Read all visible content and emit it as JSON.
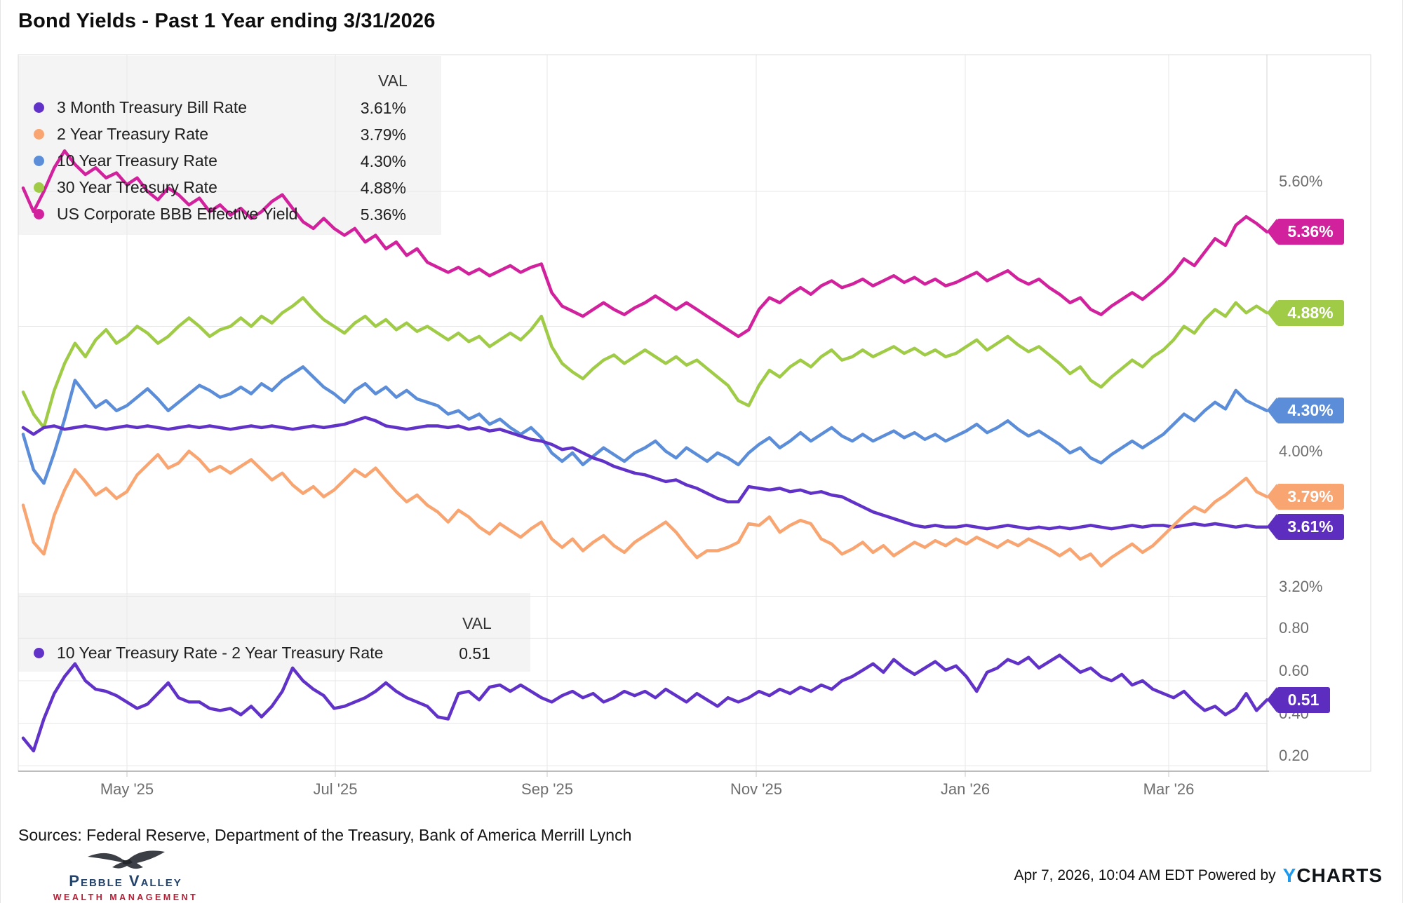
{
  "title": "Bond Yields - Past 1 Year ending 3/31/2026",
  "top_legend": {
    "val_header": "VAL",
    "items": [
      {
        "label": "3 Month Treasury Bill Rate",
        "value": "3.61%",
        "color": "#6132c8"
      },
      {
        "label": "2 Year Treasury Rate",
        "value": "3.79%",
        "color": "#f8a571"
      },
      {
        "label": "10 Year Treasury Rate",
        "value": "4.30%",
        "color": "#5b8dd9"
      },
      {
        "label": "30 Year Treasury Rate",
        "value": "4.88%",
        "color": "#9fcb47"
      },
      {
        "label": "US Corporate BBB Effective Yield",
        "value": "5.36%",
        "color": "#d2219c"
      }
    ]
  },
  "bottom_legend": {
    "val_header": "VAL",
    "items": [
      {
        "label": "10 Year Treasury Rate - 2 Year Treasury Rate",
        "value": "0.51",
        "color": "#6132c8"
      }
    ]
  },
  "pills": [
    {
      "text": "5.36%",
      "value": 5.36,
      "panel": 0,
      "color": "#d2219c"
    },
    {
      "text": "4.88%",
      "value": 4.88,
      "panel": 0,
      "color": "#9fcb47"
    },
    {
      "text": "4.30%",
      "value": 4.3,
      "panel": 0,
      "color": "#5b8dd9"
    },
    {
      "text": "3.79%",
      "value": 3.79,
      "panel": 0,
      "color": "#f8a571"
    },
    {
      "text": "3.61%",
      "value": 3.61,
      "panel": 0,
      "color": "#5c2dbf"
    },
    {
      "text": "0.51",
      "value": 0.51,
      "panel": 1,
      "color": "#5c2dbf"
    }
  ],
  "chart_data": [
    {
      "type": "line",
      "title": "Bond Yields - Past 1 Year ending 3/31/2026",
      "x_range": [
        "Apr 2025",
        "Mar 31 2026"
      ],
      "x_tick_labels": [
        "May '25",
        "Jul '25",
        "Sep '25",
        "Nov '25",
        "Jan '26",
        "Mar '26"
      ],
      "ylim": [
        3.2,
        6.0
      ],
      "grid_values": [
        5.6,
        4.8,
        4.0,
        3.2
      ],
      "yticks": [
        {
          "label": "5.60%",
          "value": 5.6
        },
        {
          "label": "4.00%",
          "value": 4.0
        },
        {
          "label": "3.20%",
          "value": 3.2
        }
      ],
      "legend_position": "top-left",
      "series": [
        {
          "name": "US Corporate BBB Effective Yield",
          "color": "#d2219c",
          "end_value": 5.36,
          "values": [
            5.62,
            5.48,
            5.6,
            5.74,
            5.84,
            5.76,
            5.7,
            5.74,
            5.68,
            5.71,
            5.64,
            5.68,
            5.6,
            5.55,
            5.62,
            5.58,
            5.52,
            5.56,
            5.48,
            5.52,
            5.46,
            5.5,
            5.44,
            5.48,
            5.54,
            5.58,
            5.5,
            5.42,
            5.38,
            5.44,
            5.38,
            5.34,
            5.38,
            5.3,
            5.34,
            5.26,
            5.3,
            5.22,
            5.26,
            5.18,
            5.15,
            5.12,
            5.15,
            5.11,
            5.14,
            5.1,
            5.13,
            5.16,
            5.12,
            5.15,
            5.17,
            5.0,
            4.92,
            4.89,
            4.86,
            4.9,
            4.94,
            4.9,
            4.87,
            4.91,
            4.94,
            4.98,
            4.94,
            4.9,
            4.94,
            4.9,
            4.86,
            4.82,
            4.78,
            4.74,
            4.78,
            4.9,
            4.97,
            4.94,
            4.99,
            5.03,
            4.99,
            5.04,
            5.07,
            5.03,
            5.05,
            5.08,
            5.04,
            5.07,
            5.1,
            5.06,
            5.09,
            5.05,
            5.08,
            5.04,
            5.06,
            5.09,
            5.12,
            5.07,
            5.1,
            5.13,
            5.08,
            5.05,
            5.08,
            5.03,
            4.99,
            4.94,
            4.97,
            4.9,
            4.87,
            4.92,
            4.96,
            5.0,
            4.96,
            5.01,
            5.06,
            5.12,
            5.2,
            5.16,
            5.24,
            5.32,
            5.28,
            5.4,
            5.45,
            5.41,
            5.36
          ]
        },
        {
          "name": "30 Year Treasury Rate",
          "color": "#9fcb47",
          "end_value": 4.88,
          "values": [
            4.41,
            4.28,
            4.2,
            4.42,
            4.58,
            4.7,
            4.62,
            4.72,
            4.78,
            4.7,
            4.74,
            4.8,
            4.76,
            4.7,
            4.74,
            4.8,
            4.85,
            4.8,
            4.74,
            4.78,
            4.8,
            4.85,
            4.8,
            4.86,
            4.82,
            4.88,
            4.92,
            4.97,
            4.9,
            4.84,
            4.8,
            4.76,
            4.82,
            4.86,
            4.8,
            4.84,
            4.78,
            4.82,
            4.77,
            4.8,
            4.76,
            4.72,
            4.76,
            4.71,
            4.74,
            4.68,
            4.72,
            4.76,
            4.72,
            4.78,
            4.86,
            4.68,
            4.58,
            4.53,
            4.49,
            4.55,
            4.6,
            4.63,
            4.58,
            4.62,
            4.66,
            4.62,
            4.58,
            4.62,
            4.57,
            4.6,
            4.55,
            4.5,
            4.45,
            4.36,
            4.33,
            4.45,
            4.54,
            4.5,
            4.56,
            4.6,
            4.56,
            4.62,
            4.66,
            4.6,
            4.62,
            4.66,
            4.62,
            4.65,
            4.68,
            4.64,
            4.67,
            4.63,
            4.66,
            4.62,
            4.64,
            4.68,
            4.72,
            4.66,
            4.7,
            4.74,
            4.69,
            4.65,
            4.68,
            4.63,
            4.58,
            4.52,
            4.56,
            4.48,
            4.44,
            4.5,
            4.55,
            4.6,
            4.56,
            4.62,
            4.66,
            4.72,
            4.8,
            4.76,
            4.84,
            4.9,
            4.86,
            4.94,
            4.88,
            4.92,
            4.88
          ]
        },
        {
          "name": "10 Year Treasury Rate",
          "color": "#5b8dd9",
          "end_value": 4.3,
          "values": [
            4.16,
            3.95,
            3.87,
            4.05,
            4.25,
            4.48,
            4.4,
            4.32,
            4.36,
            4.3,
            4.33,
            4.38,
            4.43,
            4.37,
            4.3,
            4.35,
            4.4,
            4.45,
            4.42,
            4.38,
            4.4,
            4.44,
            4.4,
            4.46,
            4.42,
            4.48,
            4.52,
            4.56,
            4.5,
            4.44,
            4.4,
            4.35,
            4.42,
            4.46,
            4.4,
            4.44,
            4.38,
            4.42,
            4.37,
            4.35,
            4.33,
            4.28,
            4.3,
            4.25,
            4.28,
            4.22,
            4.25,
            4.2,
            4.16,
            4.2,
            4.14,
            4.05,
            4.0,
            4.05,
            3.98,
            4.03,
            4.08,
            4.04,
            4.0,
            4.05,
            4.08,
            4.12,
            4.06,
            4.02,
            4.08,
            4.04,
            4.0,
            4.05,
            4.02,
            3.98,
            4.05,
            4.1,
            4.14,
            4.08,
            4.12,
            4.17,
            4.12,
            4.16,
            4.2,
            4.15,
            4.12,
            4.16,
            4.12,
            4.15,
            4.18,
            4.14,
            4.17,
            4.13,
            4.16,
            4.12,
            4.15,
            4.18,
            4.22,
            4.17,
            4.2,
            4.24,
            4.19,
            4.15,
            4.18,
            4.14,
            4.1,
            4.05,
            4.08,
            4.02,
            3.99,
            4.04,
            4.08,
            4.12,
            4.08,
            4.12,
            4.16,
            4.22,
            4.28,
            4.24,
            4.3,
            4.35,
            4.31,
            4.42,
            4.36,
            4.33,
            4.3
          ]
        },
        {
          "name": "3 Month Treasury Bill Rate",
          "color": "#6132c8",
          "end_value": 3.61,
          "values": [
            4.2,
            4.16,
            4.2,
            4.21,
            4.19,
            4.2,
            4.21,
            4.2,
            4.19,
            4.2,
            4.21,
            4.2,
            4.21,
            4.2,
            4.19,
            4.2,
            4.21,
            4.2,
            4.21,
            4.2,
            4.19,
            4.2,
            4.21,
            4.2,
            4.21,
            4.2,
            4.19,
            4.2,
            4.21,
            4.2,
            4.21,
            4.22,
            4.24,
            4.26,
            4.24,
            4.21,
            4.2,
            4.19,
            4.2,
            4.21,
            4.21,
            4.2,
            4.21,
            4.19,
            4.2,
            4.18,
            4.19,
            4.17,
            4.15,
            4.13,
            4.12,
            4.1,
            4.07,
            4.08,
            4.05,
            4.02,
            4.0,
            3.97,
            3.95,
            3.93,
            3.92,
            3.9,
            3.88,
            3.89,
            3.86,
            3.84,
            3.81,
            3.78,
            3.76,
            3.76,
            3.85,
            3.84,
            3.83,
            3.84,
            3.82,
            3.83,
            3.81,
            3.82,
            3.8,
            3.79,
            3.76,
            3.73,
            3.7,
            3.68,
            3.66,
            3.64,
            3.62,
            3.61,
            3.62,
            3.61,
            3.61,
            3.62,
            3.61,
            3.6,
            3.61,
            3.62,
            3.61,
            3.6,
            3.61,
            3.6,
            3.61,
            3.6,
            3.61,
            3.62,
            3.61,
            3.6,
            3.61,
            3.62,
            3.61,
            3.62,
            3.62,
            3.61,
            3.62,
            3.63,
            3.62,
            3.63,
            3.62,
            3.61,
            3.62,
            3.61,
            3.61
          ]
        },
        {
          "name": "2 Year Treasury Rate",
          "color": "#f8a571",
          "end_value": 3.79,
          "values": [
            3.74,
            3.52,
            3.45,
            3.68,
            3.83,
            3.95,
            3.88,
            3.8,
            3.84,
            3.78,
            3.82,
            3.92,
            3.98,
            4.04,
            3.96,
            3.99,
            4.06,
            4.01,
            3.94,
            3.97,
            3.93,
            3.97,
            4.01,
            3.95,
            3.89,
            3.93,
            3.86,
            3.81,
            3.85,
            3.79,
            3.83,
            3.89,
            3.95,
            3.91,
            3.96,
            3.89,
            3.82,
            3.76,
            3.8,
            3.74,
            3.7,
            3.64,
            3.71,
            3.67,
            3.61,
            3.57,
            3.63,
            3.59,
            3.55,
            3.6,
            3.64,
            3.54,
            3.49,
            3.54,
            3.47,
            3.52,
            3.56,
            3.5,
            3.46,
            3.52,
            3.56,
            3.6,
            3.64,
            3.58,
            3.5,
            3.43,
            3.47,
            3.47,
            3.49,
            3.52,
            3.63,
            3.62,
            3.67,
            3.58,
            3.62,
            3.65,
            3.63,
            3.54,
            3.51,
            3.45,
            3.48,
            3.52,
            3.46,
            3.5,
            3.44,
            3.48,
            3.52,
            3.49,
            3.53,
            3.5,
            3.54,
            3.51,
            3.55,
            3.52,
            3.49,
            3.53,
            3.5,
            3.54,
            3.51,
            3.48,
            3.44,
            3.48,
            3.42,
            3.45,
            3.38,
            3.43,
            3.47,
            3.51,
            3.46,
            3.5,
            3.56,
            3.62,
            3.68,
            3.73,
            3.7,
            3.76,
            3.8,
            3.85,
            3.9,
            3.82,
            3.79
          ]
        }
      ]
    },
    {
      "type": "line",
      "title": "10 Year Treasury Rate - 2 Year Treasury Rate",
      "x_range": [
        "Apr 2025",
        "Mar 31 2026"
      ],
      "x_tick_labels": [
        "May '25",
        "Jul '25",
        "Sep '25",
        "Nov '25",
        "Jan '26",
        "Mar '26"
      ],
      "ylim": [
        0.15,
        1.0
      ],
      "grid_values": [
        0.8,
        0.6,
        0.4,
        0.2
      ],
      "yticks": [
        {
          "label": "0.80",
          "value": 0.8
        },
        {
          "label": "0.60",
          "value": 0.6
        },
        {
          "label": "0.40",
          "value": 0.4
        },
        {
          "label": "0.20",
          "value": 0.2
        }
      ],
      "legend_position": "top-left",
      "series": [
        {
          "name": "10 Year Treasury Rate - 2 Year Treasury Rate",
          "color": "#6132c8",
          "end_value": 0.51,
          "values": [
            0.33,
            0.27,
            0.42,
            0.54,
            0.62,
            0.68,
            0.6,
            0.56,
            0.55,
            0.53,
            0.5,
            0.47,
            0.49,
            0.54,
            0.59,
            0.52,
            0.5,
            0.5,
            0.47,
            0.46,
            0.47,
            0.44,
            0.48,
            0.43,
            0.48,
            0.55,
            0.66,
            0.6,
            0.56,
            0.53,
            0.47,
            0.48,
            0.5,
            0.52,
            0.55,
            0.59,
            0.55,
            0.52,
            0.5,
            0.48,
            0.43,
            0.42,
            0.54,
            0.55,
            0.51,
            0.57,
            0.58,
            0.55,
            0.58,
            0.55,
            0.52,
            0.5,
            0.53,
            0.55,
            0.52,
            0.54,
            0.5,
            0.52,
            0.55,
            0.53,
            0.55,
            0.52,
            0.56,
            0.53,
            0.5,
            0.54,
            0.51,
            0.48,
            0.52,
            0.5,
            0.52,
            0.55,
            0.53,
            0.56,
            0.54,
            0.57,
            0.55,
            0.58,
            0.56,
            0.6,
            0.62,
            0.65,
            0.68,
            0.64,
            0.7,
            0.66,
            0.63,
            0.66,
            0.69,
            0.65,
            0.67,
            0.62,
            0.55,
            0.64,
            0.66,
            0.7,
            0.68,
            0.71,
            0.66,
            0.69,
            0.72,
            0.68,
            0.64,
            0.66,
            0.62,
            0.6,
            0.63,
            0.58,
            0.6,
            0.56,
            0.54,
            0.52,
            0.55,
            0.5,
            0.46,
            0.48,
            0.44,
            0.47,
            0.54,
            0.46,
            0.51
          ]
        }
      ]
    }
  ],
  "footer": {
    "sources": "Sources: Federal Reserve, Department of the Treasury, Bank of America Merrill Lynch",
    "timestamp": "Apr 7, 2026, 10:04 AM EDT Powered by",
    "ycharts_y": "Y",
    "ycharts_rest": "CHARTS",
    "logo_title": "Pebble Valley",
    "logo_subtitle": "WEALTH MANAGEMENT"
  }
}
